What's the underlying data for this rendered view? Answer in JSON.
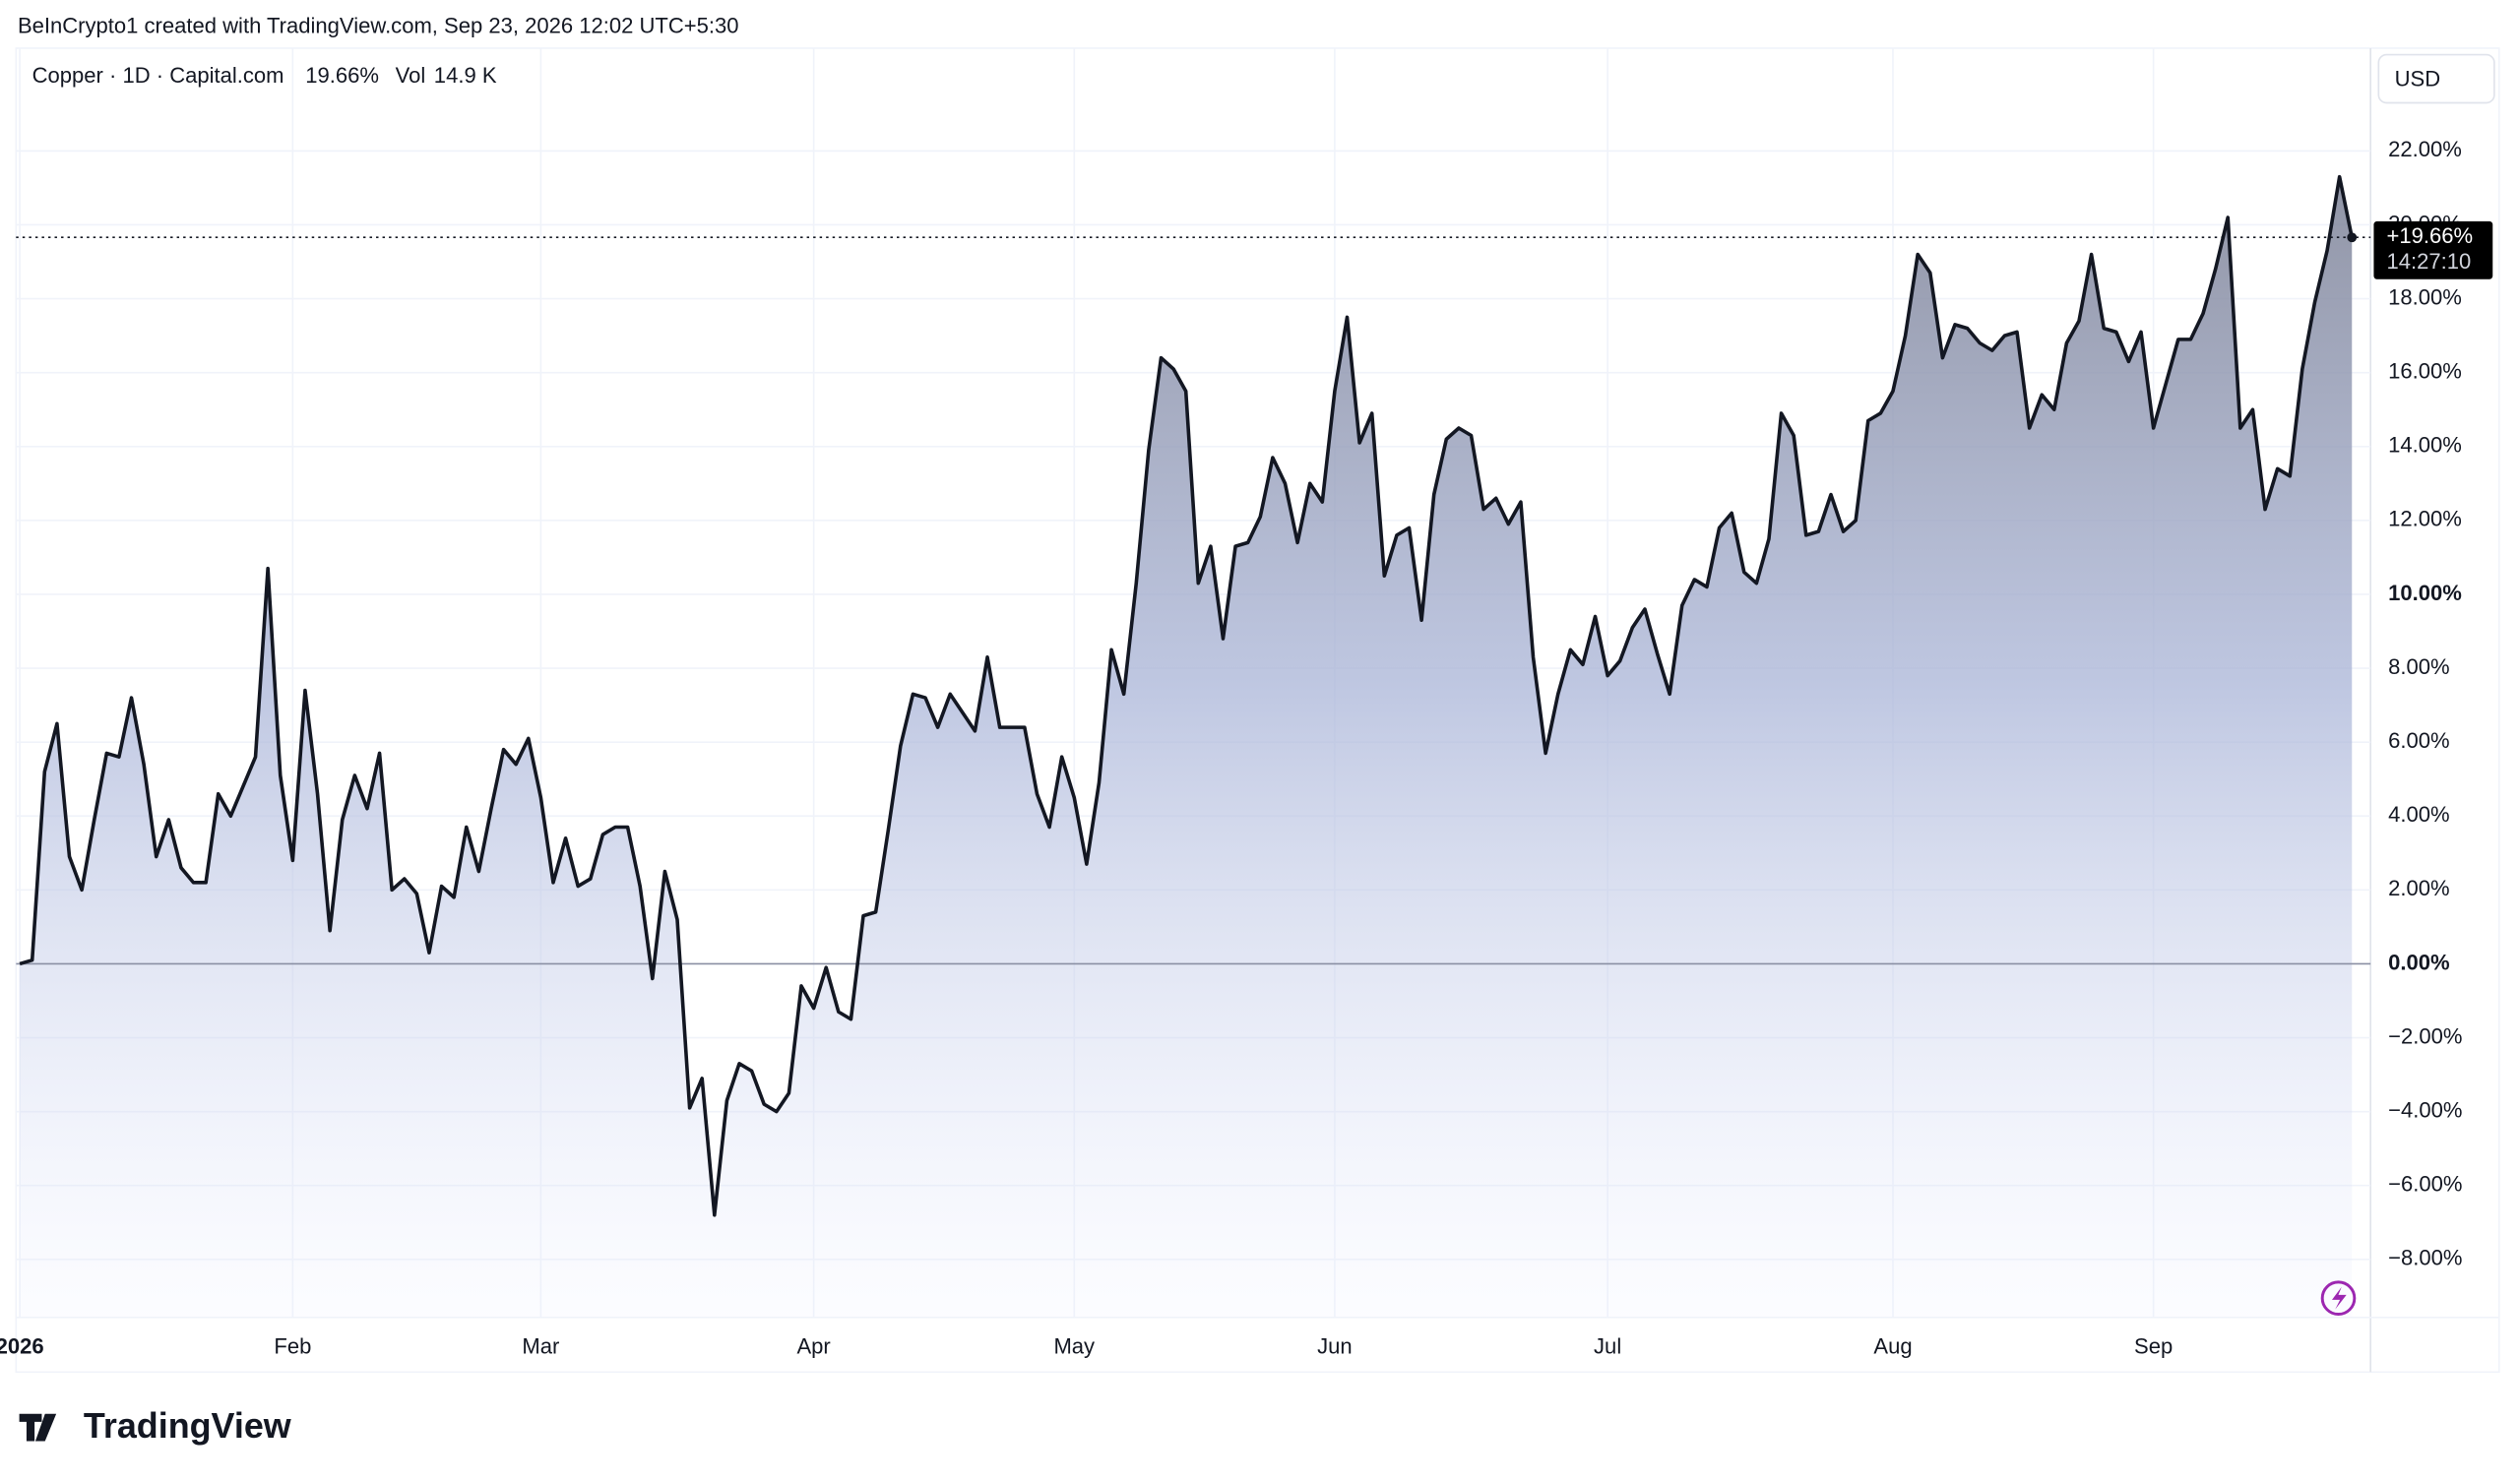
{
  "header": "BeInCrypto1 created with TradingView.com, Sep 23, 2026 12:02 UTC+5:30",
  "logo": "TradingView",
  "chart_data": {
    "type": "area",
    "symbol": "Copper · 1D · Capital.com",
    "change_label": "19.66%",
    "volume_label": "Vol",
    "volume_value": "14.9 K",
    "currency": "USD",
    "last_value_label": "+19.66%",
    "countdown": "14:27:10",
    "color": "#131722",
    "grid": true,
    "xlim": [
      -0.3,
      189.5
    ],
    "xticks": [
      {
        "value": 0,
        "label": "2026"
      },
      {
        "value": 22,
        "label": "Feb"
      },
      {
        "value": 42,
        "label": "Mar"
      },
      {
        "value": 64,
        "label": "Apr"
      },
      {
        "value": 85,
        "label": "May"
      },
      {
        "value": 106,
        "label": "Jun"
      },
      {
        "value": 128,
        "label": "Jul"
      },
      {
        "value": 151,
        "label": "Aug"
      },
      {
        "value": 172,
        "label": "Sep"
      }
    ],
    "ylim": [
      -9.57,
      24.78
    ],
    "yticks": [
      {
        "value": -8,
        "label": "−8.00%"
      },
      {
        "value": -6,
        "label": "−6.00%"
      },
      {
        "value": -4,
        "label": "−4.00%"
      },
      {
        "value": -2,
        "label": "−2.00%"
      },
      {
        "value": 0,
        "label": "0.00%"
      },
      {
        "value": 2,
        "label": "2.00%"
      },
      {
        "value": 4,
        "label": "4.00%"
      },
      {
        "value": 6,
        "label": "6.00%"
      },
      {
        "value": 8,
        "label": "8.00%"
      },
      {
        "value": 10,
        "label": "10.00%"
      },
      {
        "value": 12,
        "label": "12.00%"
      },
      {
        "value": 14,
        "label": "14.00%"
      },
      {
        "value": 16,
        "label": "16.00%"
      },
      {
        "value": 18,
        "label": "18.00%"
      },
      {
        "value": 20,
        "label": "20.00%"
      },
      {
        "value": 22,
        "label": "22.00%"
      }
    ],
    "bold_ticks": [
      0,
      10
    ],
    "values": [
      0,
      0.1,
      5.2,
      6.5,
      2.9,
      2.0,
      3.9,
      5.7,
      5.6,
      7.2,
      5.4,
      2.9,
      3.9,
      2.6,
      2.2,
      2.2,
      4.6,
      4.0,
      4.8,
      5.6,
      10.7,
      5.1,
      2.8,
      7.4,
      4.6,
      0.9,
      3.9,
      5.1,
      4.2,
      5.7,
      2.0,
      2.3,
      1.9,
      0.3,
      2.1,
      1.8,
      3.7,
      2.5,
      4.2,
      5.8,
      5.4,
      6.1,
      4.5,
      2.2,
      3.4,
      2.1,
      2.3,
      3.5,
      3.7,
      3.7,
      2.1,
      -0.4,
      2.5,
      1.2,
      -3.9,
      -3.1,
      -6.8,
      -3.7,
      -2.7,
      -2.9,
      -3.8,
      -4.0,
      -3.5,
      -0.6,
      -1.2,
      -0.1,
      -1.3,
      -1.5,
      1.3,
      1.4,
      3.6,
      5.9,
      7.3,
      7.2,
      6.4,
      7.3,
      6.8,
      6.3,
      8.3,
      6.4,
      6.4,
      6.4,
      4.6,
      3.7,
      5.6,
      4.5,
      2.7,
      4.9,
      8.5,
      7.3,
      10.3,
      13.9,
      16.4,
      16.1,
      15.5,
      10.3,
      11.3,
      8.8,
      11.3,
      11.4,
      12.1,
      13.7,
      13.0,
      11.4,
      13.0,
      12.5,
      15.5,
      17.5,
      14.1,
      14.9,
      10.5,
      11.6,
      11.8,
      9.3,
      12.7,
      14.2,
      14.5,
      14.3,
      12.3,
      12.6,
      11.9,
      12.5,
      8.3,
      5.7,
      7.3,
      8.5,
      8.1,
      9.4,
      7.8,
      8.2,
      9.1,
      9.6,
      8.4,
      7.3,
      9.7,
      10.4,
      10.2,
      11.8,
      12.2,
      10.6,
      10.3,
      11.5,
      14.9,
      14.3,
      11.6,
      11.7,
      12.7,
      11.7,
      12.0,
      14.7,
      14.9,
      15.5,
      17.0,
      19.2,
      18.7,
      16.4,
      17.3,
      17.2,
      16.8,
      16.6,
      17.0,
      17.1,
      14.5,
      15.4,
      15.0,
      16.8,
      17.4,
      19.2,
      17.2,
      17.1,
      16.3,
      17.1,
      14.5,
      15.7,
      16.9,
      16.9,
      17.6,
      18.8,
      20.2,
      14.5,
      15.0,
      12.3,
      13.4,
      13.2,
      16.1,
      17.9,
      19.3,
      21.3,
      19.66
    ]
  }
}
